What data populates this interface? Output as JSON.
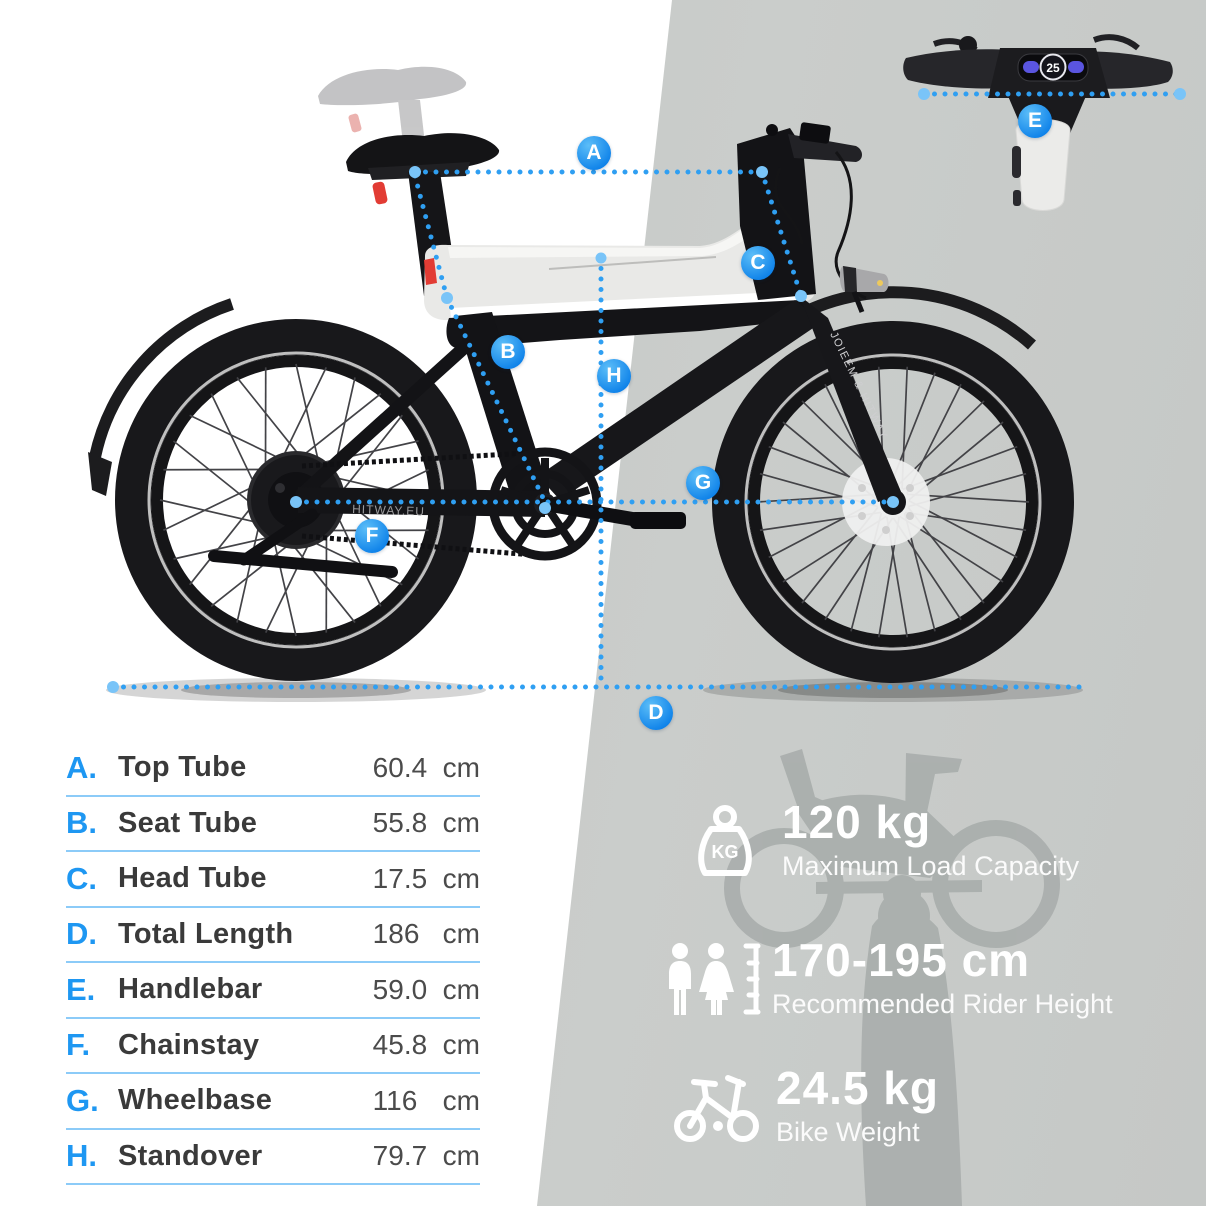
{
  "spec_table": {
    "rows": [
      {
        "letter": "A.",
        "name": "Top Tube",
        "num": "60.4",
        "unit": "cm"
      },
      {
        "letter": "B.",
        "name": "Seat Tube",
        "num": "55.8",
        "unit": "cm"
      },
      {
        "letter": "C.",
        "name": "Head Tube",
        "num": "17.5",
        "unit": "cm"
      },
      {
        "letter": "D.",
        "name": "Total Length",
        "num": "186",
        "unit": "cm"
      },
      {
        "letter": "E.",
        "name": "Handlebar",
        "num": "59.0",
        "unit": "cm"
      },
      {
        "letter": "F.",
        "name": "Chainstay",
        "num": "45.8",
        "unit": "cm"
      },
      {
        "letter": "G.",
        "name": "Wheelbase",
        "num": "116",
        "unit": "cm"
      },
      {
        "letter": "H.",
        "name": "Standover",
        "num": "79.7",
        "unit": "cm"
      }
    ]
  },
  "callouts": [
    {
      "value": "120 kg",
      "label": "Maximum Load Capacity"
    },
    {
      "value": "170-195 cm",
      "label": "Recommended Rider Height"
    },
    {
      "value": "24.5 kg",
      "label": "Bike Weight"
    }
  ],
  "markers": {
    "a": "A",
    "b": "B",
    "c": "C",
    "d": "D",
    "e": "E",
    "f": "F",
    "g": "G",
    "h": "H"
  },
  "bike": {
    "fork_text": "JOIEEM & HITWAY",
    "chainstay_text": "HITWAY.EU"
  },
  "inset": {
    "display_value": "25"
  },
  "icons": {
    "kg_label": "KG"
  },
  "colors": {
    "accent_blue": "#1e97f2",
    "line_blue": "#2f9ff2",
    "table_divider": "#8ccbf8",
    "bg_gray": "#c7cac8",
    "silhouette_gray": "#a9aeac",
    "frame_black": "#151518",
    "highlight_red": "#e23c34"
  }
}
